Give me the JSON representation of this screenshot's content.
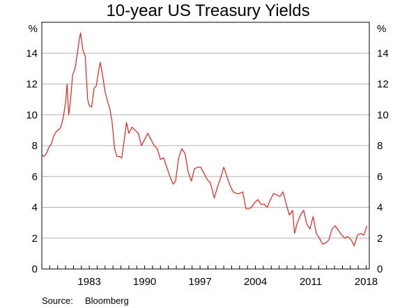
{
  "chart_data": {
    "type": "line",
    "title": "10-year US Treasury Yields",
    "unit_left": "%",
    "unit_right": "%",
    "ylim": [
      0,
      16
    ],
    "y_ticks": [
      0,
      2,
      4,
      6,
      8,
      10,
      12,
      14
    ],
    "xlim": [
      1977.0,
      2018.4
    ],
    "x_tick_labels": [
      "1983",
      "1990",
      "1997",
      "2004",
      "2011",
      "2018"
    ],
    "grid": true,
    "series": [
      {
        "color": "#e0231c",
        "x": [
          1977.0,
          1977.3,
          1977.6,
          1977.9,
          1978.2,
          1978.5,
          1978.8,
          1979.1,
          1979.4,
          1979.7,
          1980.0,
          1980.2,
          1980.4,
          1980.6,
          1980.9,
          1981.2,
          1981.5,
          1981.7,
          1981.9,
          1982.2,
          1982.5,
          1982.8,
          1983.0,
          1983.3,
          1983.6,
          1983.9,
          1984.2,
          1984.4,
          1984.7,
          1985.0,
          1985.3,
          1985.6,
          1985.9,
          1986.2,
          1986.5,
          1986.8,
          1987.1,
          1987.4,
          1987.7,
          1988.0,
          1988.4,
          1988.8,
          1989.2,
          1989.6,
          1990.0,
          1990.4,
          1990.8,
          1991.2,
          1991.6,
          1992.0,
          1992.4,
          1992.8,
          1993.2,
          1993.6,
          1993.9,
          1994.3,
          1994.7,
          1995.1,
          1995.5,
          1995.9,
          1996.3,
          1996.7,
          1997.1,
          1997.5,
          1997.9,
          1998.3,
          1998.8,
          1999.2,
          1999.6,
          2000.0,
          2000.4,
          2000.8,
          2001.2,
          2001.6,
          2002.0,
          2002.4,
          2002.8,
          2003.2,
          2003.5,
          2003.9,
          2004.3,
          2004.7,
          2005.1,
          2005.5,
          2005.9,
          2006.3,
          2006.7,
          2007.1,
          2007.5,
          2007.9,
          2008.3,
          2008.7,
          2008.95,
          2009.3,
          2009.7,
          2010.1,
          2010.5,
          2010.9,
          2011.3,
          2011.7,
          2012.1,
          2012.5,
          2012.9,
          2013.3,
          2013.7,
          2014.1,
          2014.5,
          2014.9,
          2015.3,
          2015.7,
          2016.1,
          2016.5,
          2016.9,
          2017.3,
          2017.7,
          2018.1
        ],
        "y": [
          7.4,
          7.3,
          7.5,
          7.9,
          8.1,
          8.6,
          8.9,
          9.0,
          9.2,
          9.8,
          10.8,
          12.0,
          10.0,
          10.8,
          12.6,
          13.0,
          14.0,
          14.8,
          15.3,
          14.2,
          13.8,
          11.0,
          10.6,
          10.5,
          11.7,
          11.9,
          12.9,
          13.4,
          12.5,
          11.5,
          10.9,
          10.4,
          9.5,
          7.8,
          7.3,
          7.3,
          7.2,
          8.3,
          9.5,
          8.8,
          9.2,
          9.0,
          8.8,
          8.0,
          8.4,
          8.8,
          8.4,
          8.0,
          7.8,
          7.1,
          7.2,
          6.6,
          6.0,
          5.5,
          5.7,
          7.2,
          7.8,
          7.5,
          6.3,
          5.7,
          6.5,
          6.6,
          6.6,
          6.2,
          5.8,
          5.6,
          4.6,
          5.3,
          5.9,
          6.6,
          6.0,
          5.4,
          5.0,
          4.9,
          4.9,
          5.0,
          3.9,
          3.9,
          4.0,
          4.3,
          4.5,
          4.2,
          4.2,
          4.0,
          4.5,
          4.9,
          4.8,
          4.7,
          5.0,
          4.2,
          3.5,
          3.8,
          2.3,
          3.0,
          3.5,
          3.8,
          2.9,
          2.6,
          3.4,
          2.3,
          2.0,
          1.6,
          1.7,
          1.9,
          2.6,
          2.8,
          2.5,
          2.2,
          2.0,
          2.1,
          1.9,
          1.5,
          2.2,
          2.3,
          2.2,
          2.8
        ]
      }
    ]
  },
  "footer": {
    "source_label": "Source:",
    "source_value": "Bloomberg"
  }
}
